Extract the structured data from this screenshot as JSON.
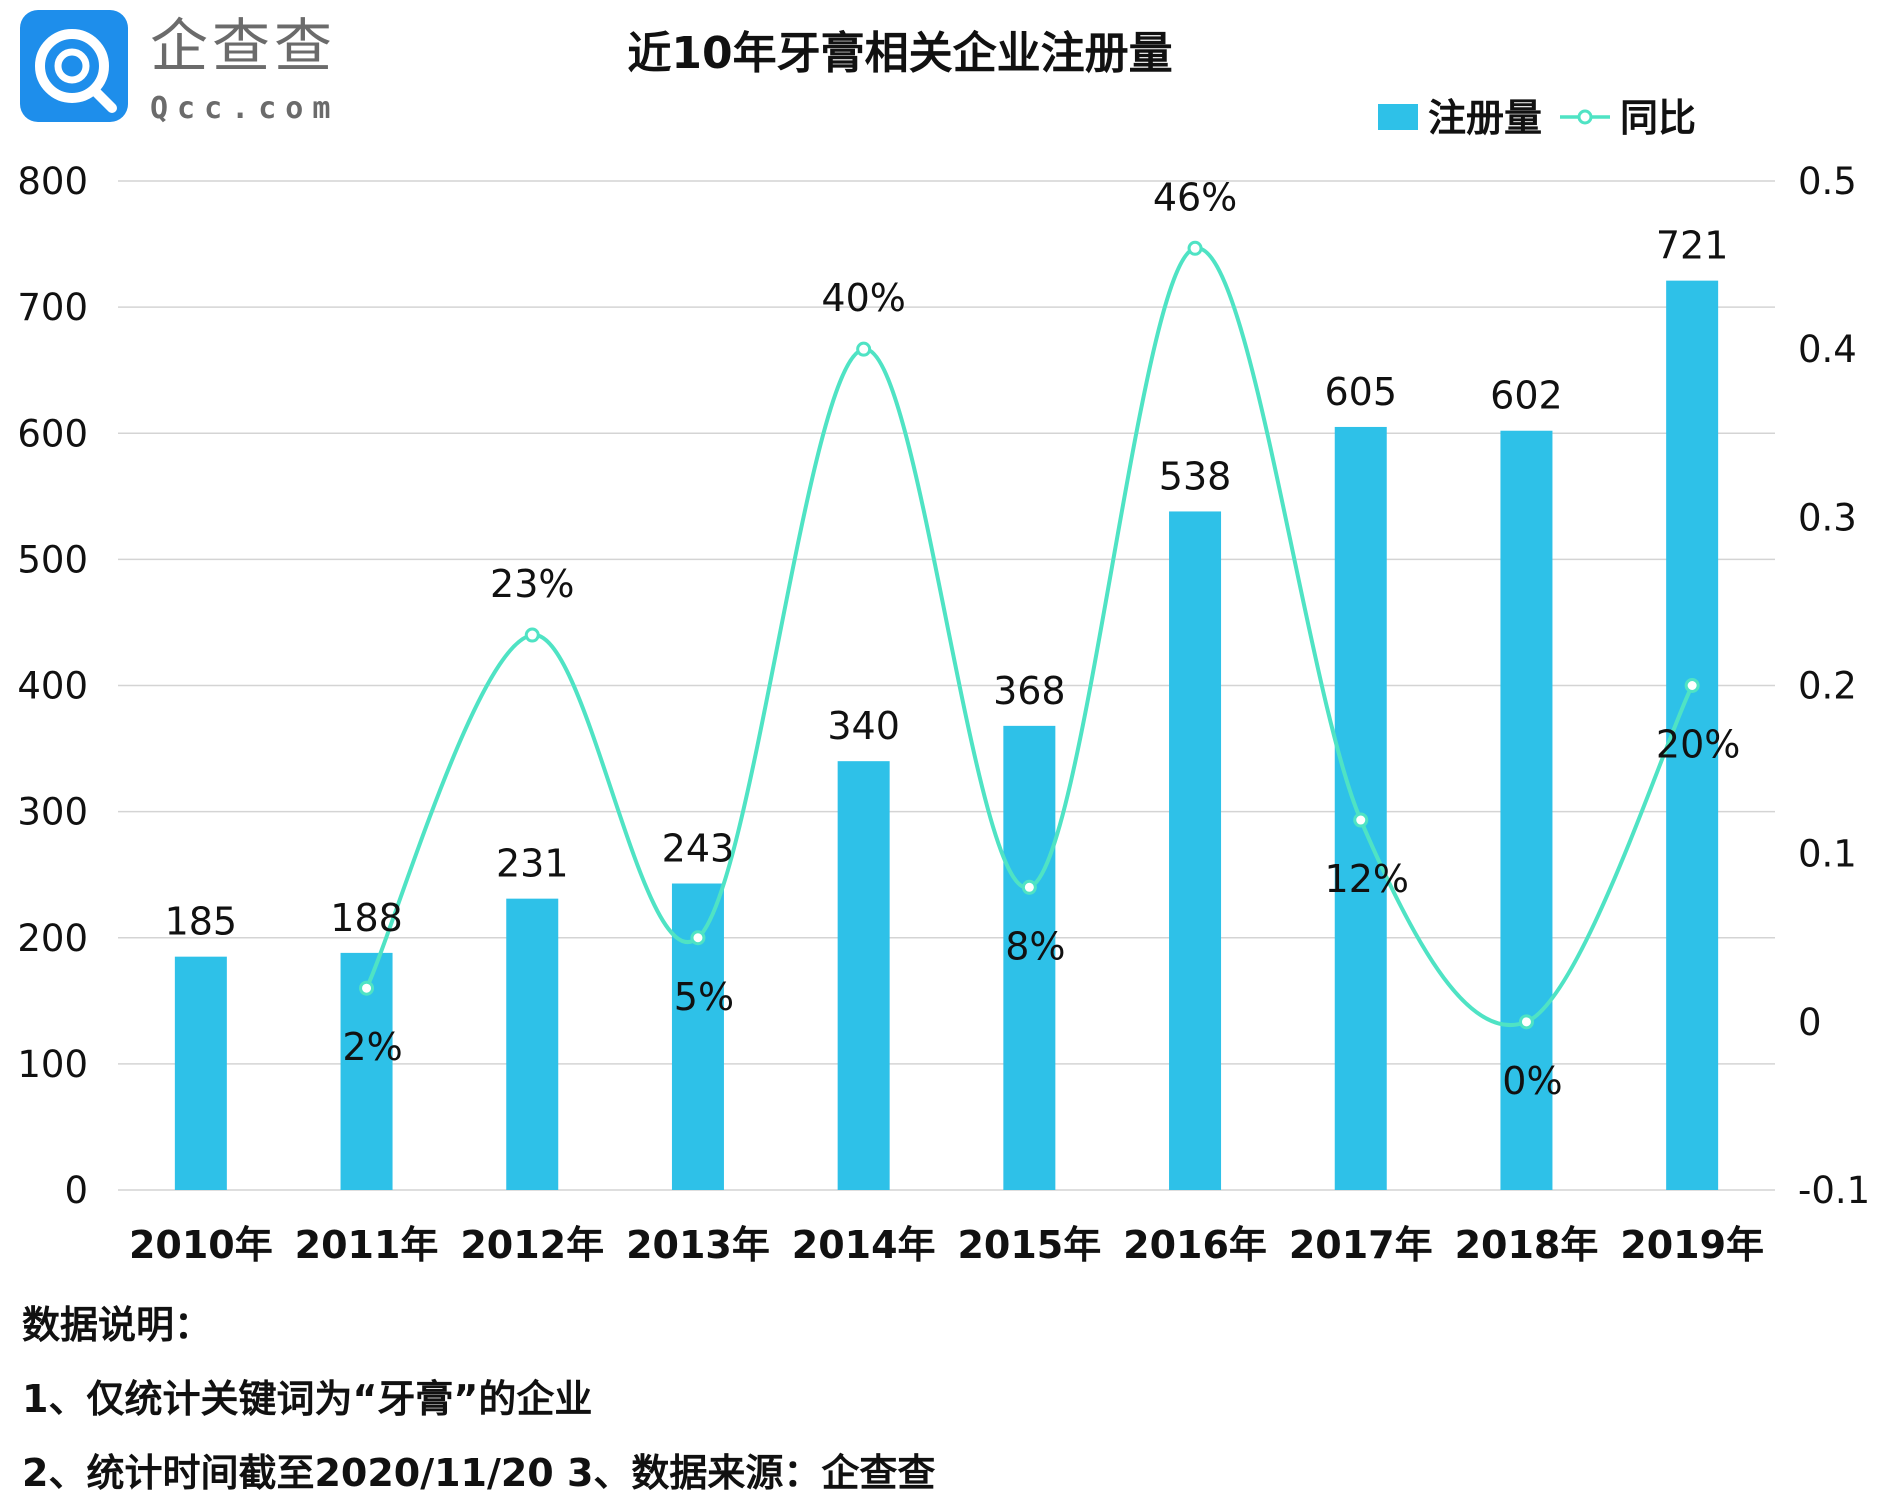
{
  "logo": {
    "name": "企查查",
    "domain": "Qcc.com"
  },
  "chart_data": {
    "type": "bar",
    "title": "近10年牙膏相关企业注册量",
    "categories": [
      "2010年",
      "2011年",
      "2012年",
      "2013年",
      "2014年",
      "2015年",
      "2016年",
      "2017年",
      "2018年",
      "2019年"
    ],
    "series": [
      {
        "name": "注册量",
        "type": "bar",
        "axis": "left",
        "color": "#2EC1E8",
        "values": [
          185,
          188,
          231,
          243,
          340,
          368,
          538,
          605,
          602,
          721
        ],
        "labels": [
          "185",
          "188",
          "231",
          "243",
          "340",
          "368",
          "538",
          "605",
          "602",
          "721"
        ]
      },
      {
        "name": "同比",
        "type": "line",
        "axis": "right",
        "color": "#4FE3C4",
        "smooth": true,
        "values": [
          null,
          0.02,
          0.23,
          0.05,
          0.4,
          0.08,
          0.46,
          0.12,
          0.0,
          0.2
        ],
        "labels": [
          null,
          "2%",
          "23%",
          "5%",
          "40%",
          "8%",
          "46%",
          "12%",
          "0%",
          "20%"
        ]
      }
    ],
    "y_left": {
      "min": 0,
      "max": 800,
      "ticks": [
        0,
        100,
        200,
        300,
        400,
        500,
        600,
        700,
        800
      ]
    },
    "y_right": {
      "min": -0.1,
      "max": 0.5,
      "ticks": [
        -0.1,
        0,
        0.1,
        0.2,
        0.3,
        0.4,
        0.5
      ],
      "tick_labels": [
        "-0.1",
        "0",
        "0.1",
        "0.2",
        "0.3",
        "0.4",
        "0.5"
      ]
    },
    "grid": true,
    "legend": {
      "position": "top-right",
      "items": [
        "注册量",
        "同比"
      ]
    }
  },
  "notes": {
    "heading": "数据说明：",
    "line1": "1、仅统计关键词为“牙膏”的企业",
    "line2": "2、统计时间截至2020/11/20   3、数据来源：企查查"
  }
}
